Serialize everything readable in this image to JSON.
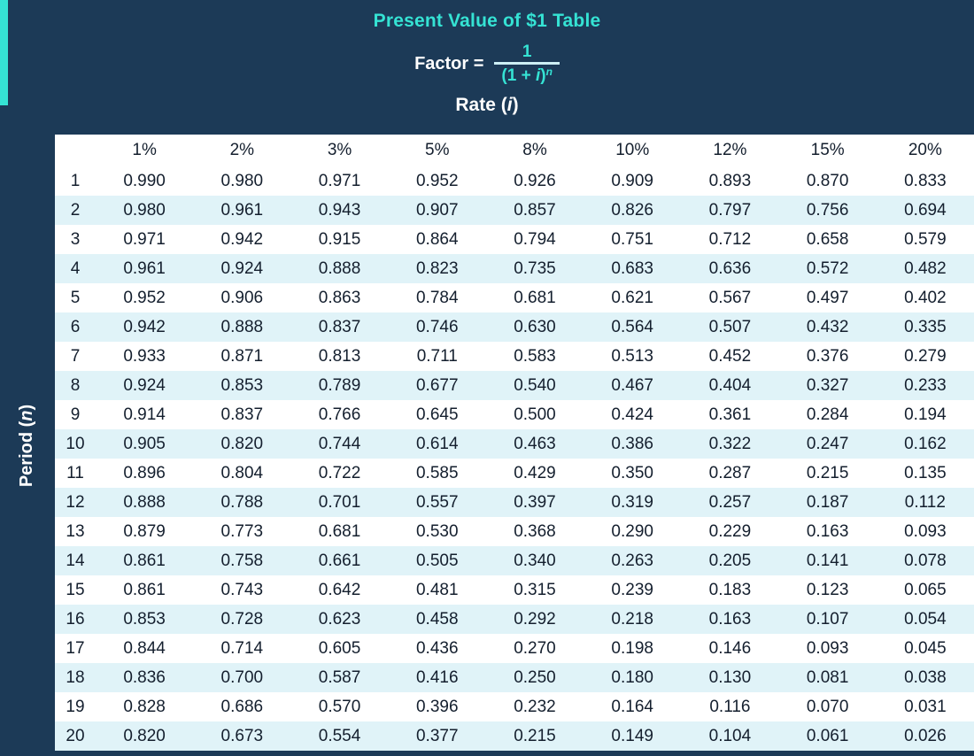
{
  "header": {
    "title": "Present Value of $1 Table",
    "factor_label": "Factor =",
    "fraction": {
      "numerator": "1",
      "den_open": "(1 + ",
      "den_i": "i",
      "den_close": ")",
      "den_exp": "n"
    },
    "rate_prefix": "Rate (",
    "rate_i": "i",
    "rate_suffix": ")"
  },
  "sidebar": {
    "period_prefix": "Period (",
    "period_n": "n",
    "period_suffix": ")"
  },
  "colors": {
    "background": "#1c3a57",
    "accent": "#35e3d4",
    "stripe": "#e0f3f8",
    "table_text": "#141f2e"
  },
  "chart_data": {
    "type": "table",
    "title": "Present Value of $1 Table",
    "row_header": "Period (n)",
    "column_header": "Rate (i)",
    "columns": [
      "1%",
      "2%",
      "3%",
      "5%",
      "8%",
      "10%",
      "12%",
      "15%",
      "20%"
    ],
    "rows": [
      {
        "period": "1",
        "values": [
          "0.990",
          "0.980",
          "0.971",
          "0.952",
          "0.926",
          "0.909",
          "0.893",
          "0.870",
          "0.833"
        ]
      },
      {
        "period": "2",
        "values": [
          "0.980",
          "0.961",
          "0.943",
          "0.907",
          "0.857",
          "0.826",
          "0.797",
          "0.756",
          "0.694"
        ]
      },
      {
        "period": "3",
        "values": [
          "0.971",
          "0.942",
          "0.915",
          "0.864",
          "0.794",
          "0.751",
          "0.712",
          "0.658",
          "0.579"
        ]
      },
      {
        "period": "4",
        "values": [
          "0.961",
          "0.924",
          "0.888",
          "0.823",
          "0.735",
          "0.683",
          "0.636",
          "0.572",
          "0.482"
        ]
      },
      {
        "period": "5",
        "values": [
          "0.952",
          "0.906",
          "0.863",
          "0.784",
          "0.681",
          "0.621",
          "0.567",
          "0.497",
          "0.402"
        ]
      },
      {
        "period": "6",
        "values": [
          "0.942",
          "0.888",
          "0.837",
          "0.746",
          "0.630",
          "0.564",
          "0.507",
          "0.432",
          "0.335"
        ]
      },
      {
        "period": "7",
        "values": [
          "0.933",
          "0.871",
          "0.813",
          "0.711",
          "0.583",
          "0.513",
          "0.452",
          "0.376",
          "0.279"
        ]
      },
      {
        "period": "8",
        "values": [
          "0.924",
          "0.853",
          "0.789",
          "0.677",
          "0.540",
          "0.467",
          "0.404",
          "0.327",
          "0.233"
        ]
      },
      {
        "period": "9",
        "values": [
          "0.914",
          "0.837",
          "0.766",
          "0.645",
          "0.500",
          "0.424",
          "0.361",
          "0.284",
          "0.194"
        ]
      },
      {
        "period": "10",
        "values": [
          "0.905",
          "0.820",
          "0.744",
          "0.614",
          "0.463",
          "0.386",
          "0.322",
          "0.247",
          "0.162"
        ]
      },
      {
        "period": "11",
        "values": [
          "0.896",
          "0.804",
          "0.722",
          "0.585",
          "0.429",
          "0.350",
          "0.287",
          "0.215",
          "0.135"
        ]
      },
      {
        "period": "12",
        "values": [
          "0.888",
          "0.788",
          "0.701",
          "0.557",
          "0.397",
          "0.319",
          "0.257",
          "0.187",
          "0.112"
        ]
      },
      {
        "period": "13",
        "values": [
          "0.879",
          "0.773",
          "0.681",
          "0.530",
          "0.368",
          "0.290",
          "0.229",
          "0.163",
          "0.093"
        ]
      },
      {
        "period": "14",
        "values": [
          "0.861",
          "0.758",
          "0.661",
          "0.505",
          "0.340",
          "0.263",
          "0.205",
          "0.141",
          "0.078"
        ]
      },
      {
        "period": "15",
        "values": [
          "0.861",
          "0.743",
          "0.642",
          "0.481",
          "0.315",
          "0.239",
          "0.183",
          "0.123",
          "0.065"
        ]
      },
      {
        "period": "16",
        "values": [
          "0.853",
          "0.728",
          "0.623",
          "0.458",
          "0.292",
          "0.218",
          "0.163",
          "0.107",
          "0.054"
        ]
      },
      {
        "period": "17",
        "values": [
          "0.844",
          "0.714",
          "0.605",
          "0.436",
          "0.270",
          "0.198",
          "0.146",
          "0.093",
          "0.045"
        ]
      },
      {
        "period": "18",
        "values": [
          "0.836",
          "0.700",
          "0.587",
          "0.416",
          "0.250",
          "0.180",
          "0.130",
          "0.081",
          "0.038"
        ]
      },
      {
        "period": "19",
        "values": [
          "0.828",
          "0.686",
          "0.570",
          "0.396",
          "0.232",
          "0.164",
          "0.116",
          "0.070",
          "0.031"
        ]
      },
      {
        "period": "20",
        "values": [
          "0.820",
          "0.673",
          "0.554",
          "0.377",
          "0.215",
          "0.149",
          "0.104",
          "0.061",
          "0.026"
        ]
      }
    ]
  }
}
